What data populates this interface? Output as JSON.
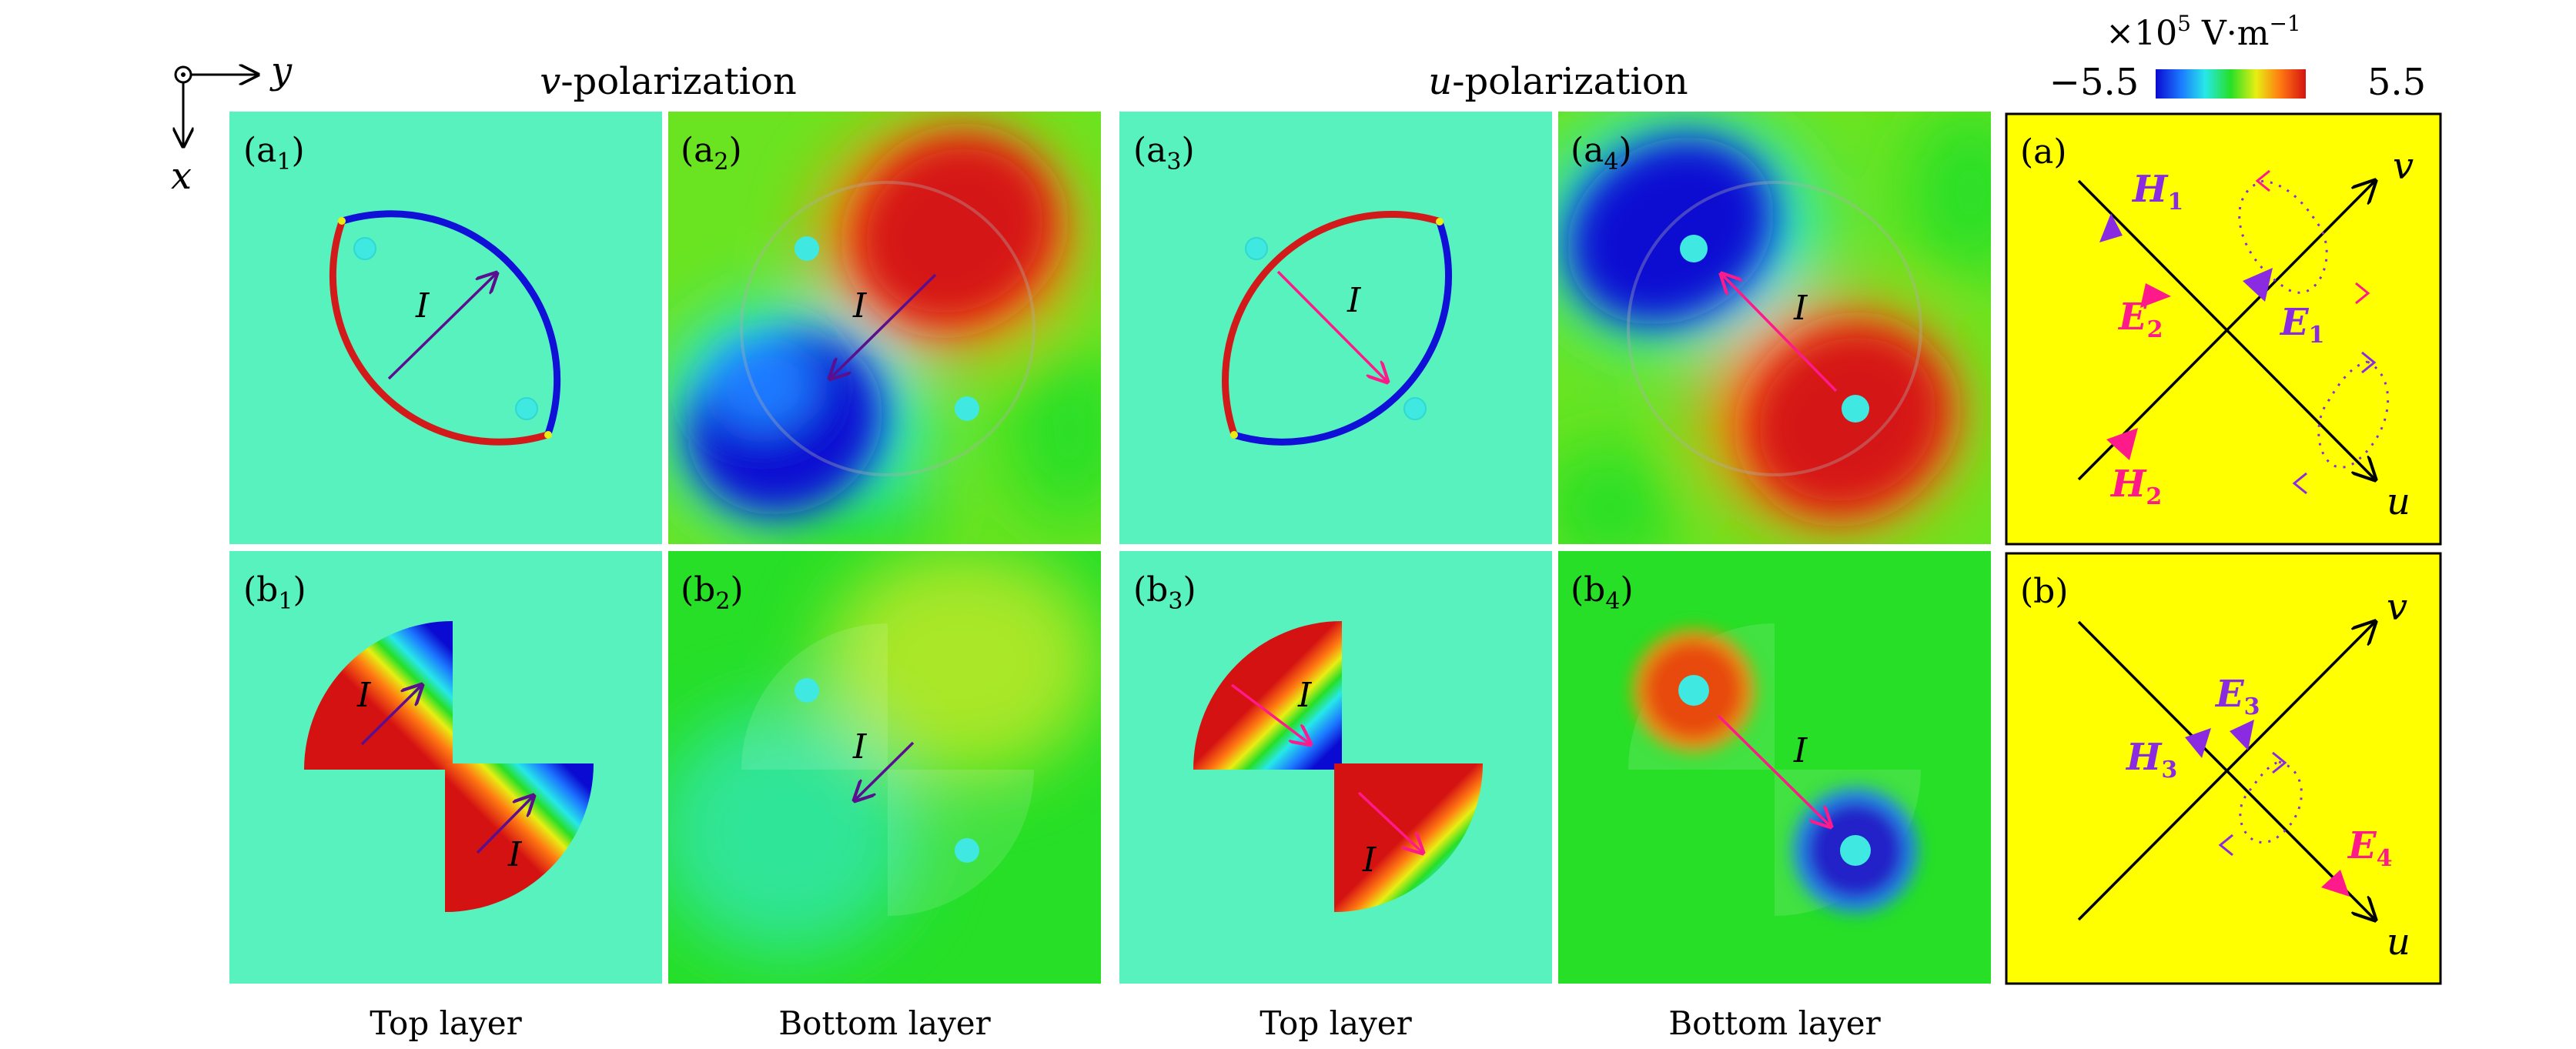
{
  "axes_indicator": {
    "x_label": "x",
    "y_label": "y"
  },
  "column_headers": {
    "v": "v",
    "u": "u",
    "suffix": "-polarization"
  },
  "colorbar": {
    "unit_prefix": "×10",
    "exponent": "5",
    "unit": "V·m",
    "unit_exp": "−1",
    "min_label": "−5.5",
    "max_label": "5.5",
    "min": -5.5,
    "max": 5.5,
    "colors": [
      "#0a0ad2",
      "#1c7aff",
      "#27e8e8",
      "#27df27",
      "#e8ee13",
      "#ff7a12",
      "#d51212"
    ]
  },
  "panels": {
    "a1": {
      "letter": "a",
      "sub": "1",
      "current": "I"
    },
    "a2": {
      "letter": "a",
      "sub": "2",
      "current": "I"
    },
    "a3": {
      "letter": "a",
      "sub": "3",
      "current": "I"
    },
    "a4": {
      "letter": "a",
      "sub": "4",
      "current": "I"
    },
    "b1": {
      "letter": "b",
      "sub": "1",
      "current": "I"
    },
    "b2": {
      "letter": "b",
      "sub": "2",
      "current": "I"
    },
    "b3": {
      "letter": "b",
      "sub": "3",
      "current": "I"
    },
    "b4": {
      "letter": "b",
      "sub": "4",
      "current": "I"
    },
    "a": {
      "label": "(a)",
      "v": "v",
      "u": "u",
      "H1": "H",
      "H1_sub": "1",
      "E2": "E",
      "E2_sub": "2",
      "E1": "E",
      "E1_sub": "1",
      "H2": "H",
      "H2_sub": "2"
    },
    "b": {
      "label": "(b)",
      "v": "v",
      "u": "u",
      "E3": "E",
      "E3_sub": "3",
      "H3": "H",
      "H3_sub": "3",
      "E4": "E",
      "E4_sub": "4"
    }
  },
  "bottom_captions": {
    "c1": "Top layer",
    "c2": "Bottom layer",
    "c3": "Top layer",
    "c4": "Bottom layer"
  },
  "colors": {
    "mint": "#57f2be",
    "green": "#26dc26",
    "yellow": "#ffff00",
    "purple": "#8a2be2",
    "pink": "#ff1a8c",
    "dark_arrow": "#5b0f8f"
  }
}
